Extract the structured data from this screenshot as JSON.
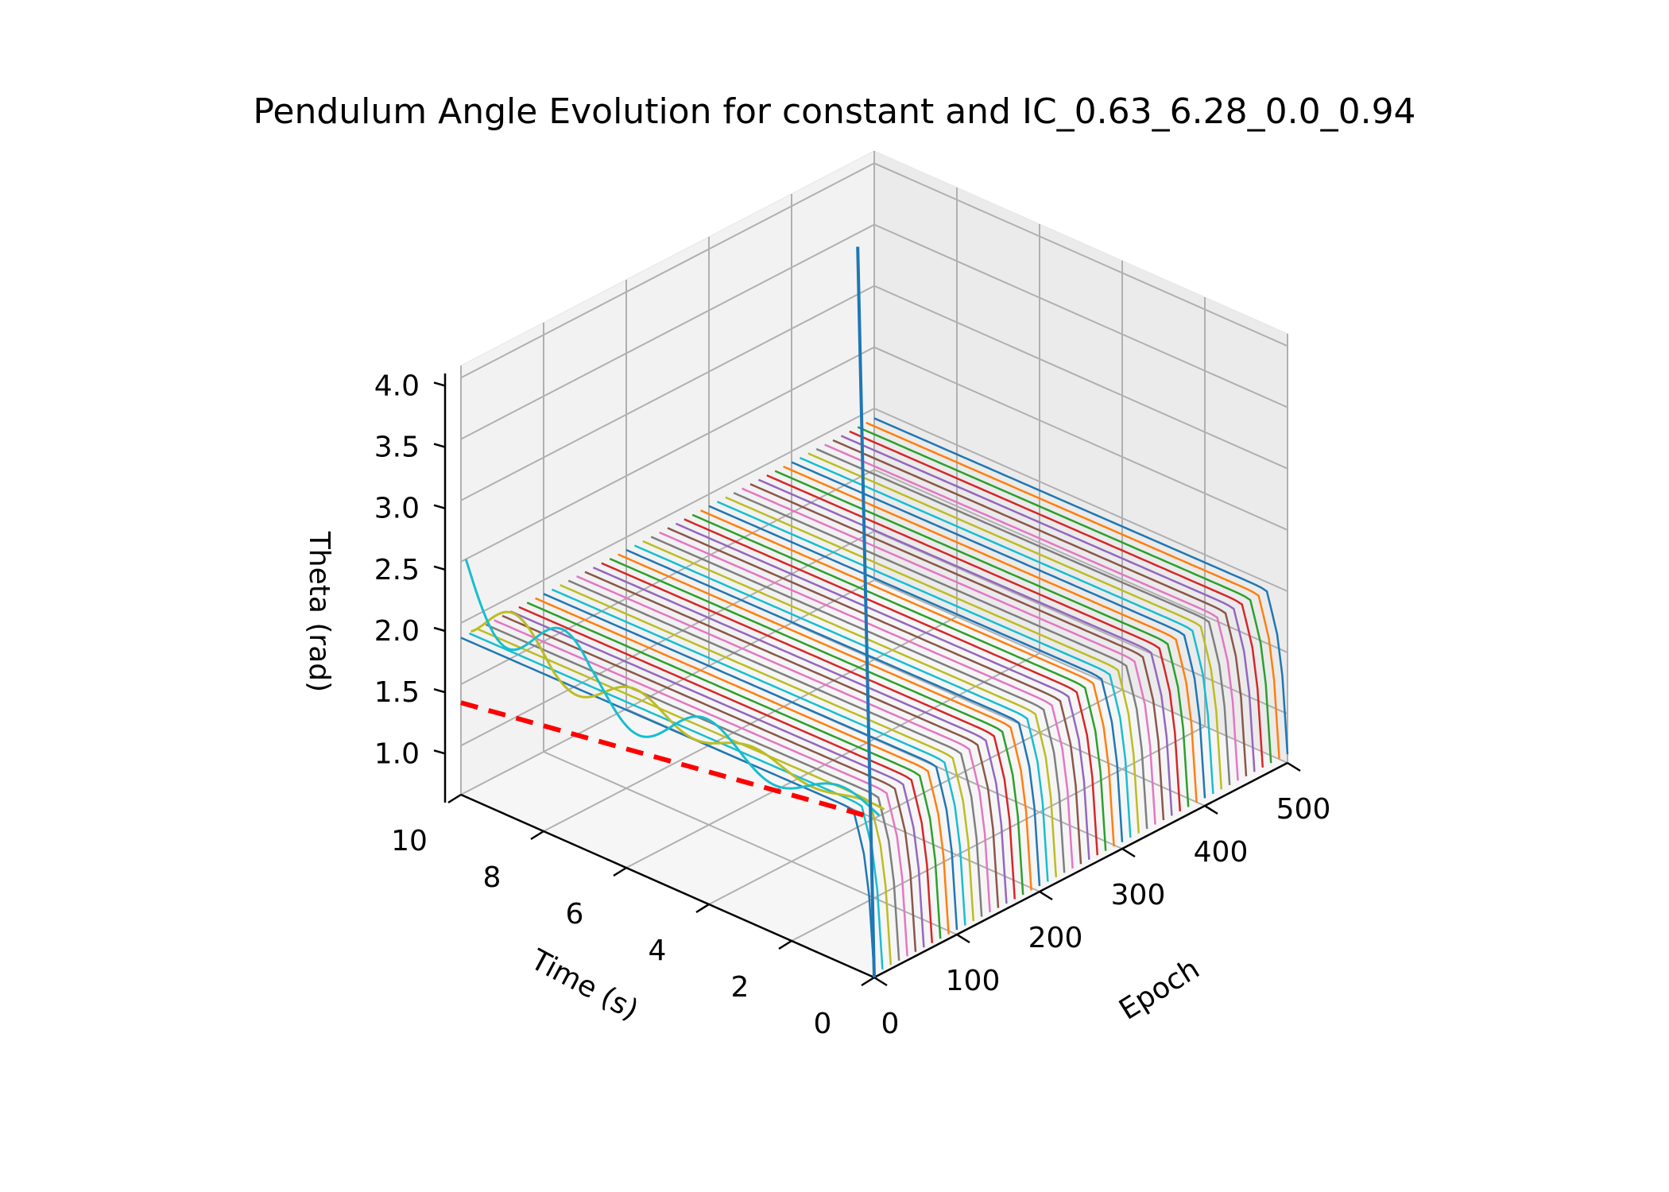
{
  "chart_data": {
    "type": "line",
    "projection": "3d",
    "title": "Pendulum Angle Evolution for constant and IC_0.63_6.28_0.0_0.94",
    "xlabel": "Epoch",
    "ylabel": "Time (s)",
    "zlabel": "Theta (rad)",
    "x_ticks": [
      "0",
      "100",
      "200",
      "300",
      "400",
      "500"
    ],
    "y_ticks": [
      "0",
      "2",
      "4",
      "6",
      "8",
      "10"
    ],
    "z_ticks": [
      "1.0",
      "1.5",
      "2.0",
      "2.5",
      "3.0",
      "3.5",
      "4.0"
    ],
    "xlim": [
      0,
      500
    ],
    "ylim": [
      0,
      10
    ],
    "zlim": [
      0.6,
      4.1
    ],
    "grid": true,
    "series_description": {
      "epoch_range": [
        0,
        500
      ],
      "epoch_step": 10,
      "time_range": [
        0,
        10
      ],
      "initial_theta": 0.63,
      "settled_theta": 1.9,
      "reference_line": {
        "theta": 1.9,
        "color": "#ff0000",
        "style": "dashed"
      }
    },
    "palette": [
      "#1f77b4",
      "#ff7f0e",
      "#2ca02c",
      "#d62728",
      "#9467bd",
      "#8c564b",
      "#e377c2",
      "#7f7f7f",
      "#bcbd22",
      "#17becf"
    ]
  }
}
